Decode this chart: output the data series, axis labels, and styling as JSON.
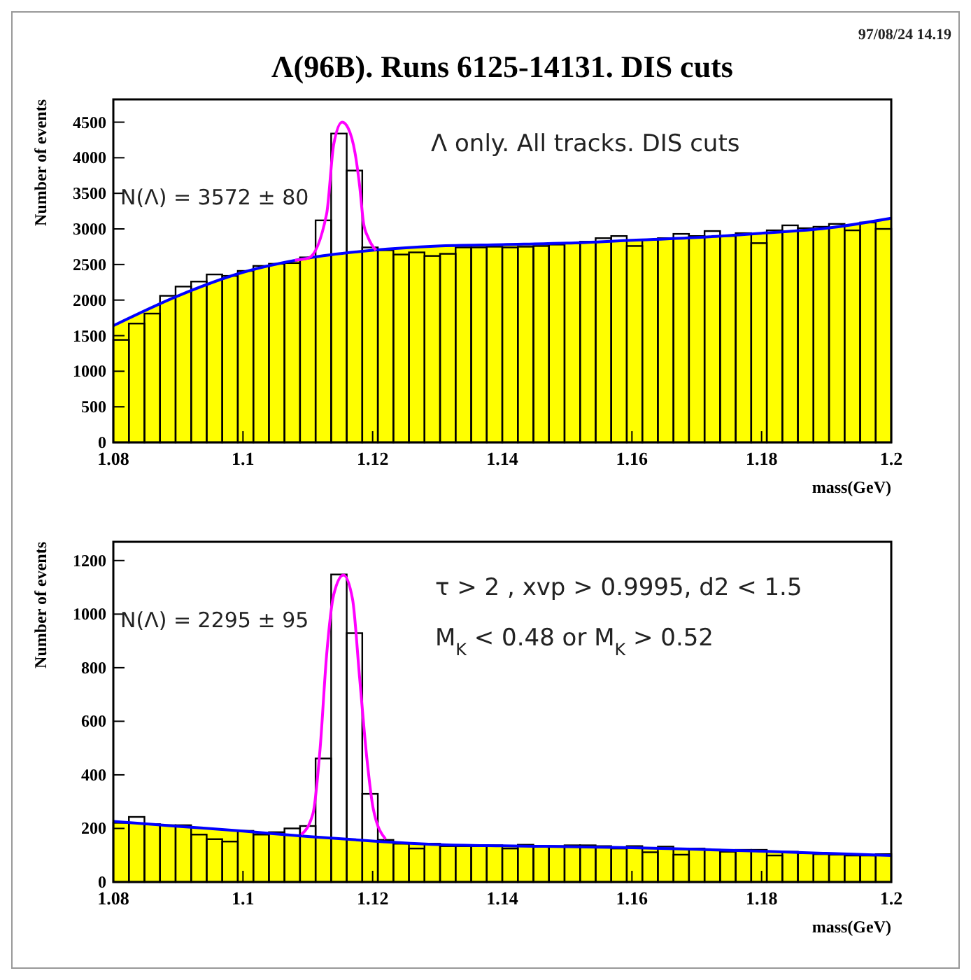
{
  "chart_data": [
    {
      "type": "histogram",
      "title": "Λ(96B).  Runs 6125-14131. DIS cuts",
      "xlabel": "mass(GeV)",
      "ylabel": "Number of events",
      "annotations": [
        "97/08/24   14.19",
        "N(Λ) = 3572 ±  80",
        "Λ only. All tracks. DIS cuts"
      ],
      "xlim": [
        1.08,
        1.2
      ],
      "xticks": [
        1.08,
        1.1,
        1.12,
        1.14,
        1.16,
        1.18,
        1.2
      ],
      "ylim": [
        0,
        4820
      ],
      "yticks": [
        0,
        500,
        1000,
        1500,
        2000,
        2500,
        3000,
        3500,
        4000,
        4500
      ],
      "grid": false,
      "series": [
        {
          "type": "area",
          "color": "#ffff00",
          "x": [
            1.08,
            1.09,
            1.1,
            1.11,
            1.12,
            1.13,
            1.14,
            1.15,
            1.16,
            1.17,
            1.18,
            1.19,
            1.2
          ],
          "values": [
            1640,
            2060,
            2390,
            2590,
            2700,
            2760,
            2780,
            2800,
            2840,
            2880,
            2940,
            3010,
            3150
          ]
        },
        {
          "color": "#000000",
          "bins": [
            1.08,
            1.0824,
            1.0848,
            1.0872,
            1.0896,
            1.092,
            1.0944,
            1.0968,
            1.0992,
            1.1016,
            1.104,
            1.1064,
            1.1088,
            1.1112,
            1.1136,
            1.116,
            1.1184,
            1.1208,
            1.1232,
            1.1256,
            1.128,
            1.1304,
            1.1328,
            1.1352,
            1.1376,
            1.14,
            1.1424,
            1.1448,
            1.1472,
            1.1496,
            1.152,
            1.1544,
            1.1568,
            1.1592,
            1.1616,
            1.164,
            1.1664,
            1.1688,
            1.1712,
            1.1736,
            1.176,
            1.1784,
            1.1808,
            1.1832,
            1.1856,
            1.188,
            1.1904,
            1.1928,
            1.1952,
            1.1976,
            1.2
          ],
          "values": [
            1440,
            1670,
            1810,
            2060,
            2190,
            2260,
            2360,
            2340,
            2410,
            2480,
            2510,
            2520,
            2600,
            3120,
            4340,
            3820,
            2740,
            2700,
            2640,
            2670,
            2620,
            2650,
            2740,
            2740,
            2750,
            2740,
            2750,
            2760,
            2780,
            2800,
            2820,
            2870,
            2900,
            2760,
            2850,
            2870,
            2930,
            2900,
            2970,
            2900,
            2940,
            2800,
            2980,
            3050,
            3010,
            3030,
            3070,
            2980,
            3090,
            3000
          ]
        },
        {
          "type": "line",
          "color": "#0000ff",
          "x": [
            1.08,
            1.09,
            1.1,
            1.11,
            1.12,
            1.13,
            1.14,
            1.15,
            1.16,
            1.17,
            1.18,
            1.19,
            1.2
          ],
          "values": [
            1640,
            2060,
            2390,
            2590,
            2700,
            2760,
            2780,
            2800,
            2840,
            2880,
            2940,
            3010,
            3150
          ]
        },
        {
          "type": "line",
          "color": "#ff00ff",
          "x": [
            1.108,
            1.1101,
            1.1129,
            1.114,
            1.1153,
            1.1162,
            1.1173,
            1.118,
            1.1186,
            1.1193,
            1.1205
          ],
          "values": [
            2560,
            2590,
            3210,
            4190,
            4500,
            4420,
            4060,
            3600,
            3080,
            2880,
            2700
          ]
        }
      ]
    },
    {
      "type": "histogram",
      "xlabel": "mass(GeV)",
      "ylabel": "Number of events",
      "annotations": [
        "N(Λ) = 2295 ±  95",
        "τ > 2 , xvp > 0.9995, d2 < 1.5",
        "M$_{K}$ < 0.48 or  M$_{K}$ >  0.52"
      ],
      "xlim": [
        1.08,
        1.2
      ],
      "xticks": [
        1.08,
        1.1,
        1.12,
        1.14,
        1.16,
        1.18,
        1.2
      ],
      "ylim": [
        0,
        1270
      ],
      "yticks": [
        0,
        200,
        400,
        600,
        800,
        1000,
        1200
      ],
      "grid": false,
      "series": [
        {
          "type": "area",
          "color": "#ffff00",
          "x": [
            1.08,
            1.09,
            1.1,
            1.11,
            1.12,
            1.13,
            1.14,
            1.15,
            1.16,
            1.17,
            1.18,
            1.19,
            1.2
          ],
          "values": [
            226,
            208,
            190,
            170,
            153,
            140,
            135,
            132,
            128,
            122,
            115,
            107,
            99
          ]
        },
        {
          "color": "#000000",
          "bins": [
            1.08,
            1.0824,
            1.0848,
            1.0872,
            1.0896,
            1.092,
            1.0944,
            1.0968,
            1.0992,
            1.1016,
            1.104,
            1.1064,
            1.1088,
            1.1112,
            1.1136,
            1.116,
            1.1184,
            1.1208,
            1.1232,
            1.1256,
            1.128,
            1.1304,
            1.1328,
            1.1352,
            1.1376,
            1.14,
            1.1424,
            1.1448,
            1.1472,
            1.1496,
            1.152,
            1.1544,
            1.1568,
            1.1592,
            1.1616,
            1.164,
            1.1664,
            1.1688,
            1.1712,
            1.1736,
            1.176,
            1.1784,
            1.1808,
            1.1832,
            1.1856,
            1.188,
            1.1904,
            1.1928,
            1.1952,
            1.1976,
            1.2
          ],
          "values": [
            221,
            243,
            216,
            212,
            212,
            177,
            160,
            151,
            191,
            177,
            186,
            200,
            209,
            461,
            1148,
            929,
            329,
            157,
            143,
            125,
            143,
            134,
            134,
            134,
            137,
            125,
            139,
            134,
            134,
            137,
            137,
            134,
            125,
            134,
            111,
            132,
            102,
            125,
            120,
            113,
            120,
            120,
            99,
            113,
            108,
            104,
            102,
            99,
            99,
            104
          ]
        },
        {
          "type": "line",
          "color": "#0000ff",
          "x": [
            1.08,
            1.09,
            1.1,
            1.11,
            1.12,
            1.13,
            1.14,
            1.15,
            1.16,
            1.17,
            1.18,
            1.19,
            1.2
          ],
          "values": [
            226,
            208,
            190,
            170,
            153,
            140,
            135,
            132,
            128,
            122,
            115,
            107,
            99
          ]
        },
        {
          "type": "line",
          "color": "#ff00ff",
          "x": [
            1.109,
            1.1108,
            1.1119,
            1.1129,
            1.114,
            1.1155,
            1.1169,
            1.118,
            1.1191,
            1.1201,
            1.122
          ],
          "values": [
            177,
            256,
            499,
            847,
            1073,
            1146,
            1056,
            760,
            464,
            273,
            160
          ]
        }
      ]
    }
  ]
}
